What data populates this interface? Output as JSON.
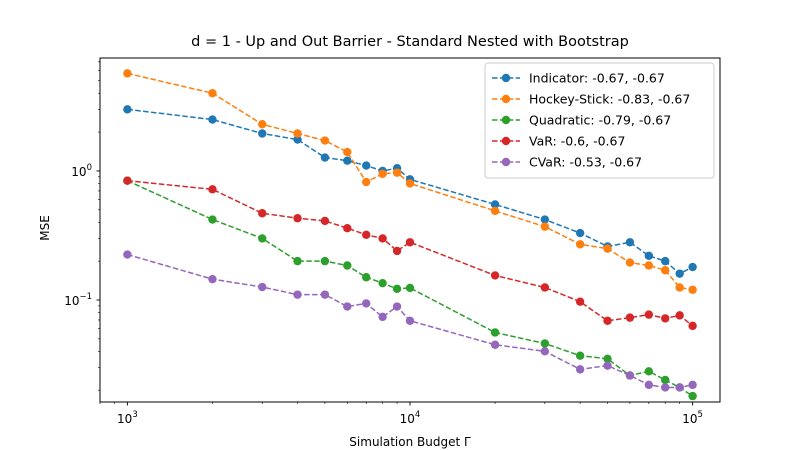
{
  "chart_data": {
    "type": "line",
    "title": "d = 1 - Up and Out Barrier - Standard Nested with Bootstrap",
    "xlabel": "Simulation Budget Γ",
    "ylabel": "MSE",
    "xscale": "log",
    "yscale": "log",
    "xlim": [
      800,
      125000
    ],
    "ylim": [
      0.0162,
      7.5
    ],
    "x_ticks": [
      {
        "value": 1000,
        "base": "10",
        "exp": "3"
      },
      {
        "value": 10000,
        "base": "10",
        "exp": "4"
      },
      {
        "value": 100000,
        "base": "10",
        "exp": "5"
      }
    ],
    "y_ticks": [
      {
        "value": 0.1,
        "base": "10",
        "exp": "−1"
      },
      {
        "value": 1,
        "base": "10",
        "exp": "0"
      }
    ],
    "legend_position": "upper right",
    "grid": false,
    "x": [
      1000,
      2000,
      3000,
      4000,
      5000,
      6000,
      7000,
      8000,
      9000,
      10000,
      20000,
      30000,
      40000,
      50000,
      60000,
      70000,
      80000,
      90000,
      100000
    ],
    "series": [
      {
        "name": "Indicator: -0.67, -0.67",
        "color": "#1f77b4",
        "values": [
          3.0,
          2.5,
          1.95,
          1.75,
          1.27,
          1.2,
          1.1,
          1.0,
          1.05,
          0.86,
          0.55,
          0.42,
          0.33,
          0.26,
          0.28,
          0.22,
          0.2,
          0.16,
          0.18
        ]
      },
      {
        "name": "Hockey-Stick: -0.83, -0.67",
        "color": "#ff7f0e",
        "values": [
          5.7,
          4.0,
          2.3,
          1.95,
          1.72,
          1.4,
          0.82,
          0.95,
          0.97,
          0.8,
          0.49,
          0.37,
          0.27,
          0.25,
          0.195,
          0.185,
          0.17,
          0.125,
          0.12
        ]
      },
      {
        "name": "Quadratic: -0.79, -0.67",
        "color": "#2ca02c",
        "values": [
          0.84,
          0.42,
          0.3,
          0.2,
          0.2,
          0.185,
          0.15,
          0.135,
          0.122,
          0.124,
          0.056,
          0.046,
          0.037,
          0.035,
          0.026,
          0.028,
          0.024,
          0.021,
          0.018
        ]
      },
      {
        "name": "VaR: -0.6, -0.67",
        "color": "#d62728",
        "values": [
          0.84,
          0.72,
          0.47,
          0.43,
          0.41,
          0.36,
          0.32,
          0.3,
          0.24,
          0.28,
          0.155,
          0.125,
          0.097,
          0.069,
          0.073,
          0.077,
          0.072,
          0.076,
          0.063
        ]
      },
      {
        "name": "CVaR: -0.53, -0.67",
        "color": "#9467bd",
        "values": [
          0.225,
          0.145,
          0.126,
          0.11,
          0.11,
          0.089,
          0.094,
          0.074,
          0.089,
          0.069,
          0.045,
          0.04,
          0.029,
          0.031,
          0.026,
          0.022,
          0.021,
          0.021,
          0.022
        ]
      }
    ]
  }
}
